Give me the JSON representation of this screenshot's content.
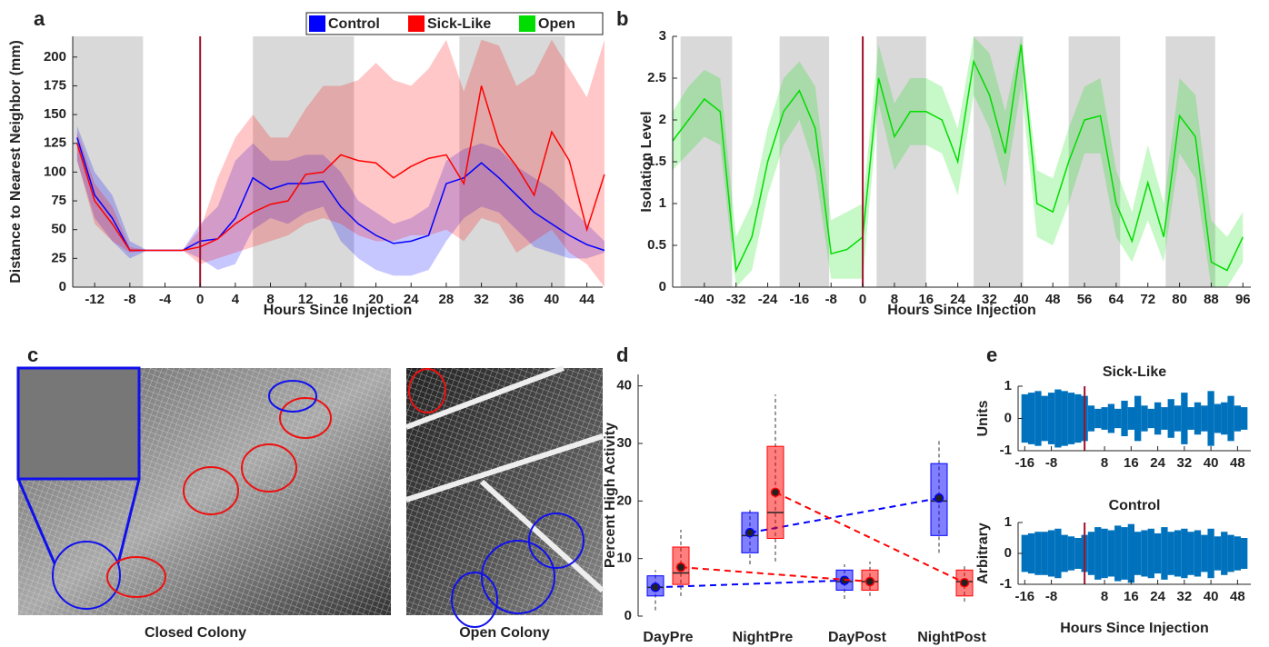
{
  "chart_data": [
    {
      "type": "line",
      "panel_label": "a",
      "x_label": "Hours Since Injection",
      "y_label": "Distance to Nearest Neighbor (mm)",
      "x": [
        -14,
        -12,
        -10,
        -8,
        -6,
        -4,
        -2,
        0,
        2,
        4,
        6,
        8,
        10,
        12,
        14,
        16,
        18,
        20,
        22,
        24,
        26,
        28,
        30,
        32,
        34,
        36,
        38,
        40,
        42,
        44,
        46
      ],
      "series": [
        {
          "name": "Control",
          "color": "#0000ff",
          "values": [
            130,
            80,
            60,
            32,
            32,
            32,
            32,
            40,
            42,
            60,
            95,
            85,
            90,
            90,
            92,
            70,
            55,
            45,
            38,
            40,
            45,
            90,
            95,
            108,
            95,
            80,
            65,
            55,
            45,
            37,
            32
          ],
          "lower": [
            110,
            60,
            40,
            25,
            32,
            32,
            32,
            25,
            15,
            20,
            50,
            60,
            55,
            65,
            70,
            40,
            25,
            15,
            10,
            10,
            15,
            40,
            60,
            70,
            65,
            50,
            35,
            30,
            25,
            25,
            30
          ],
          "upper": [
            140,
            100,
            80,
            40,
            32,
            32,
            32,
            55,
            70,
            110,
            125,
            110,
            110,
            115,
            115,
            100,
            75,
            65,
            55,
            60,
            70,
            110,
            120,
            125,
            120,
            105,
            95,
            85,
            70,
            55,
            40
          ]
        },
        {
          "name": "Sick-Like",
          "color": "#ff0000",
          "values": [
            125,
            75,
            55,
            32,
            32,
            32,
            32,
            35,
            42,
            55,
            65,
            72,
            75,
            98,
            100,
            115,
            110,
            108,
            95,
            105,
            112,
            115,
            90,
            175,
            125,
            105,
            80,
            135,
            110,
            50,
            98
          ],
          "lower": [
            110,
            55,
            40,
            30,
            32,
            32,
            32,
            20,
            25,
            30,
            35,
            40,
            45,
            55,
            60,
            55,
            45,
            40,
            40,
            45,
            45,
            50,
            40,
            60,
            55,
            30,
            40,
            50,
            30,
            20,
            0
          ],
          "upper": [
            135,
            90,
            70,
            35,
            32,
            32,
            32,
            50,
            95,
            130,
            150,
            130,
            130,
            155,
            175,
            175,
            180,
            195,
            180,
            175,
            190,
            215,
            170,
            215,
            210,
            175,
            185,
            215,
            190,
            165,
            215
          ]
        }
      ],
      "xlim": [
        -14.5,
        45.8
      ],
      "ylim": [
        0,
        218
      ],
      "xticks": [
        -12,
        -8,
        -4,
        0,
        4,
        8,
        12,
        16,
        20,
        24,
        28,
        32,
        36,
        40,
        44
      ],
      "yticks": [
        0,
        25,
        50,
        75,
        100,
        125,
        150,
        175,
        200
      ],
      "night_periods": [
        [
          -14.5,
          -6.5
        ],
        [
          6,
          17.5
        ],
        [
          29.5,
          41.5
        ]
      ],
      "injection_x": 0,
      "legend": "top"
    },
    {
      "type": "line",
      "panel_label": "b",
      "x_label": "Hours Since Injection",
      "y_label": "Isolation Level",
      "x": [
        -48,
        -44,
        -40,
        -36,
        -32,
        -28,
        -24,
        -20,
        -16,
        -12,
        -8,
        -4,
        0,
        4,
        8,
        12,
        16,
        20,
        24,
        28,
        32,
        36,
        40,
        44,
        48,
        52,
        56,
        60,
        64,
        68,
        72,
        76,
        80,
        84,
        88,
        92,
        96
      ],
      "series": [
        {
          "name": "Open",
          "color": "#00dd00",
          "values": [
            1.75,
            2.0,
            2.25,
            2.1,
            0.2,
            0.6,
            1.5,
            2.1,
            2.35,
            1.9,
            0.4,
            0.45,
            0.6,
            2.5,
            1.8,
            2.1,
            2.1,
            2.0,
            1.5,
            2.7,
            2.3,
            1.6,
            2.9,
            1.0,
            0.9,
            1.5,
            2.0,
            2.05,
            1.0,
            0.55,
            1.25,
            0.6,
            2.05,
            1.8,
            0.3,
            0.2,
            0.6
          ],
          "lower": [
            1.4,
            1.6,
            1.8,
            1.7,
            0.0,
            0.2,
            1.1,
            1.7,
            2.0,
            1.4,
            0.1,
            0.1,
            0.1,
            2.2,
            1.4,
            1.7,
            1.7,
            1.6,
            1.1,
            2.3,
            1.9,
            1.2,
            2.4,
            0.6,
            0.5,
            1.0,
            1.6,
            1.6,
            0.6,
            0.3,
            0.8,
            0.3,
            1.6,
            1.3,
            0.0,
            0.0,
            0.3
          ],
          "upper": [
            2.1,
            2.4,
            2.6,
            2.5,
            0.6,
            1.0,
            1.9,
            2.5,
            2.7,
            2.4,
            0.8,
            0.9,
            1.0,
            2.9,
            2.2,
            2.5,
            2.5,
            2.4,
            1.9,
            3.0,
            2.8,
            2.1,
            3.0,
            1.4,
            1.3,
            1.9,
            2.4,
            2.5,
            1.4,
            0.9,
            1.7,
            1.0,
            2.5,
            2.3,
            0.8,
            0.6,
            0.9
          ]
        }
      ],
      "xlim": [
        -48,
        98
      ],
      "ylim": [
        0,
        3
      ],
      "xticks": [
        -40,
        -32,
        -24,
        -16,
        -8,
        0,
        8,
        16,
        24,
        32,
        40,
        48,
        56,
        64,
        72,
        80,
        88,
        96
      ],
      "yticks": [
        0,
        0.5,
        1,
        1.5,
        2,
        2.5,
        3
      ],
      "night_periods": [
        [
          -46,
          -33
        ],
        [
          -21,
          -8.5
        ],
        [
          3.5,
          16
        ],
        [
          28,
          40.5
        ],
        [
          52,
          65
        ],
        [
          76.5,
          89
        ]
      ],
      "injection_x": 0
    },
    {
      "type": "box",
      "panel_label": "d",
      "y_label": "Percent High Activity",
      "categories": [
        "DayPre",
        "NightPre",
        "DayPost",
        "NightPost"
      ],
      "series": [
        {
          "name": "Control",
          "color": "#0000ff",
          "min": [
            1,
            9,
            3,
            11
          ],
          "q1": [
            3.5,
            11,
            4.5,
            14
          ],
          "median": [
            5,
            14,
            6,
            20
          ],
          "q3": [
            7,
            18,
            8,
            26.5
          ],
          "max": [
            8,
            18.5,
            9,
            30.5
          ],
          "mean": [
            5,
            14.5,
            6.2,
            20.5
          ]
        },
        {
          "name": "Sick-Like",
          "color": "#ff0000",
          "min": [
            3.5,
            9.5,
            3.5,
            2.5
          ],
          "q1": [
            5.5,
            13.5,
            4.5,
            3.5
          ],
          "median": [
            7.5,
            18,
            6,
            6
          ],
          "q3": [
            12,
            29.5,
            8,
            8
          ],
          "max": [
            15,
            38.5,
            9.5,
            9
          ],
          "mean": [
            8.5,
            21.5,
            6,
            5.8
          ]
        }
      ],
      "ylim": [
        0,
        42
      ],
      "yticks": [
        0,
        10,
        20,
        30,
        40
      ]
    },
    {
      "type": "waveform",
      "panel_label": "e",
      "title": "Sick-Like",
      "y_label": "Units",
      "color": "#0072bd",
      "x": [
        -16,
        -14,
        -12,
        -10,
        -8,
        -6,
        -4,
        -2,
        0,
        2,
        4,
        6,
        8,
        10,
        12,
        14,
        16,
        18,
        20,
        22,
        24,
        26,
        28,
        30,
        32,
        34,
        36,
        38,
        40,
        42,
        44,
        46,
        48,
        50
      ],
      "values": [
        0.75,
        0.8,
        0.85,
        0.7,
        0.8,
        0.9,
        0.85,
        0.8,
        0.75,
        0.7,
        0.4,
        0.3,
        0.35,
        0.45,
        0.3,
        0.55,
        0.35,
        0.7,
        0.4,
        0.3,
        0.5,
        0.35,
        0.6,
        0.4,
        0.8,
        0.35,
        0.5,
        0.4,
        0.85,
        0.45,
        0.5,
        0.7,
        0.4,
        0.35
      ],
      "xlim": [
        -18,
        52
      ],
      "ylim": [
        -1,
        1
      ],
      "xticks": [
        -16,
        -8,
        8,
        16,
        24,
        32,
        40,
        48
      ],
      "yticks": [
        -1,
        0,
        1
      ],
      "injection_x": 2
    },
    {
      "type": "waveform",
      "title": "Control",
      "y_label": "Arbitrary",
      "x_label": "Hours Since Injection",
      "color": "#0072bd",
      "x": [
        -16,
        -14,
        -12,
        -10,
        -8,
        -6,
        -4,
        -2,
        0,
        2,
        4,
        6,
        8,
        10,
        12,
        14,
        16,
        18,
        20,
        22,
        24,
        26,
        28,
        30,
        32,
        34,
        36,
        38,
        40,
        42,
        44,
        46,
        48,
        50
      ],
      "values": [
        0.6,
        0.65,
        0.7,
        0.7,
        0.75,
        0.8,
        0.6,
        0.55,
        0.5,
        0.6,
        0.7,
        0.85,
        0.8,
        0.75,
        0.9,
        0.85,
        0.95,
        0.7,
        0.75,
        0.8,
        0.65,
        0.85,
        0.7,
        0.75,
        0.8,
        0.7,
        0.75,
        0.6,
        0.8,
        0.55,
        0.7,
        0.6,
        0.55,
        0.5
      ],
      "xlim": [
        -18,
        52
      ],
      "ylim": [
        -1,
        1
      ],
      "xticks": [
        -16,
        -8,
        8,
        16,
        24,
        32,
        40,
        48
      ],
      "yticks": [
        -1,
        0,
        1
      ],
      "injection_x": 2
    }
  ],
  "photos": {
    "panel_label": "c",
    "captions": [
      "Closed Colony",
      "Open Colony"
    ]
  }
}
